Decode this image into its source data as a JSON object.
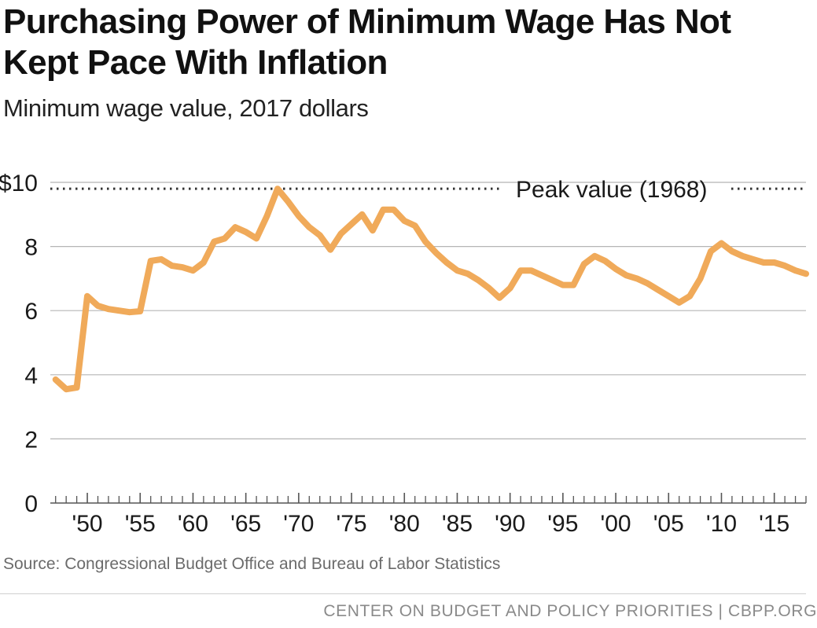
{
  "header": {
    "title": "Purchasing Power of Minimum Wage Has Not Kept Pace With Inflation",
    "subtitle": "Minimum wage value, 2017 dollars"
  },
  "chart_data": {
    "type": "line",
    "title": "Purchasing Power of Minimum Wage Has Not Kept Pace With Inflation",
    "subtitle": "Minimum wage value, 2017 dollars",
    "xlabel": "",
    "ylabel": "",
    "xlim": [
      1946.5,
      2018
    ],
    "ylim": [
      0,
      10
    ],
    "grid": true,
    "yticks": [
      0,
      2,
      4,
      6,
      8,
      10
    ],
    "ytick_labels": [
      "0",
      "2",
      "4",
      "6",
      "8",
      "$10"
    ],
    "xtick_years": [
      1950,
      1955,
      1960,
      1965,
      1970,
      1975,
      1980,
      1985,
      1990,
      1995,
      2000,
      2005,
      2010,
      2015
    ],
    "xtick_labels": [
      "'50",
      "'55",
      "'60",
      "'65",
      "'70",
      "'75",
      "'80",
      "'85",
      "'90",
      "'95",
      "'00",
      "'05",
      "'10",
      "'15"
    ],
    "series": [
      {
        "name": "Minimum wage value (2017 dollars)",
        "color": "#F0AA5A",
        "x": [
          1947,
          1948,
          1949,
          1950,
          1951,
          1952,
          1953,
          1954,
          1955,
          1956,
          1957,
          1958,
          1959,
          1960,
          1961,
          1962,
          1963,
          1964,
          1965,
          1966,
          1967,
          1968,
          1969,
          1970,
          1971,
          1972,
          1973,
          1974,
          1975,
          1976,
          1977,
          1978,
          1979,
          1980,
          1981,
          1982,
          1983,
          1984,
          1985,
          1986,
          1987,
          1988,
          1989,
          1990,
          1991,
          1992,
          1993,
          1994,
          1995,
          1996,
          1997,
          1998,
          1999,
          2000,
          2001,
          2002,
          2003,
          2004,
          2005,
          2006,
          2007,
          2008,
          2009,
          2010,
          2011,
          2012,
          2013,
          2014,
          2015,
          2016,
          2017,
          2018
        ],
        "values": [
          3.85,
          3.55,
          3.6,
          6.45,
          6.15,
          6.05,
          6.0,
          5.95,
          5.98,
          7.55,
          7.6,
          7.4,
          7.35,
          7.25,
          7.5,
          8.15,
          8.25,
          8.6,
          8.45,
          8.25,
          8.95,
          9.8,
          9.4,
          8.95,
          8.6,
          8.35,
          7.9,
          8.4,
          8.7,
          9.0,
          8.5,
          9.15,
          9.15,
          8.8,
          8.65,
          8.15,
          7.8,
          7.5,
          7.25,
          7.15,
          6.95,
          6.7,
          6.4,
          6.7,
          7.25,
          7.25,
          7.1,
          6.95,
          6.8,
          6.8,
          7.45,
          7.7,
          7.55,
          7.3,
          7.1,
          7.0,
          6.85,
          6.65,
          6.45,
          6.25,
          6.45,
          7.0,
          7.85,
          8.1,
          7.85,
          7.7,
          7.6,
          7.5,
          7.5,
          7.4,
          7.25,
          7.15
        ]
      }
    ],
    "annotations": [
      {
        "label": "Peak value (1968)",
        "y": 9.8,
        "style": "dotted"
      }
    ]
  },
  "source": "Source: Congressional Budget Office and Bureau of Labor Statistics",
  "footer": "CENTER ON BUDGET AND POLICY PRIORITIES | CBPP.ORG"
}
